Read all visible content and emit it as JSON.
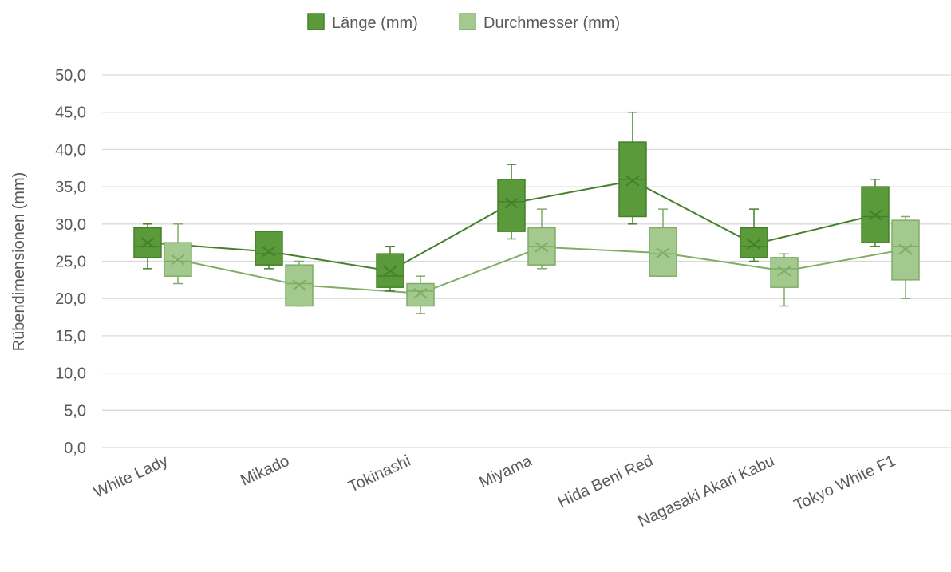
{
  "chart_data": {
    "type": "box",
    "title": "",
    "xlabel": "",
    "ylabel": "Rübendimensionen (mm)",
    "ylim": [
      0,
      50
    ],
    "ytick_step": 5,
    "ytick_labels": [
      "0,0",
      "5,0",
      "10,0",
      "15,0",
      "20,0",
      "25,0",
      "30,0",
      "35,0",
      "40,0",
      "45,0",
      "50,0"
    ],
    "grid": true,
    "legend_position": "top-center",
    "categories": [
      "White Lady",
      "Mikado",
      "Tokinashi",
      "Miyama",
      "Hida Beni Red",
      "Nagasaki Akari Kabu",
      "Tokyo White F1"
    ],
    "series": [
      {
        "name": "Länge (mm)",
        "color": "#5a9a3a",
        "stroke": "#44802a",
        "boxes": [
          {
            "min": 24,
            "q1": 25.5,
            "median": 27,
            "q3": 29.5,
            "max": 30,
            "mean": 27.5
          },
          {
            "min": 24,
            "q1": 24.5,
            "median": 26,
            "q3": 29,
            "max": 29,
            "mean": 26.3
          },
          {
            "min": 21,
            "q1": 21.5,
            "median": 23,
            "q3": 26,
            "max": 27,
            "mean": 23.7
          },
          {
            "min": 28,
            "q1": 29,
            "median": 33,
            "q3": 36,
            "max": 38,
            "mean": 32.8
          },
          {
            "min": 30,
            "q1": 31,
            "median": 36,
            "q3": 41,
            "max": 45,
            "mean": 35.8
          },
          {
            "min": 25,
            "q1": 25.5,
            "median": 27,
            "q3": 29.5,
            "max": 32,
            "mean": 27.3
          },
          {
            "min": 27,
            "q1": 27.5,
            "median": 31,
            "q3": 35,
            "max": 36,
            "mean": 31.2
          }
        ]
      },
      {
        "name": "Durchmesser (mm)",
        "color": "#a4c98e",
        "stroke": "#7fad66",
        "boxes": [
          {
            "min": 22,
            "q1": 23,
            "median": 25,
            "q3": 27.5,
            "max": 30,
            "mean": 25.2
          },
          {
            "min": 19,
            "q1": 19,
            "median": 22,
            "q3": 24.5,
            "max": 25,
            "mean": 21.8
          },
          {
            "min": 18,
            "q1": 19,
            "median": 21,
            "q3": 22,
            "max": 23,
            "mean": 20.7
          },
          {
            "min": 24,
            "q1": 24.5,
            "median": 27,
            "q3": 29.5,
            "max": 32,
            "mean": 26.9
          },
          {
            "min": 23,
            "q1": 23,
            "median": 26,
            "q3": 29.5,
            "max": 32,
            "mean": 26.1
          },
          {
            "min": 19,
            "q1": 21.5,
            "median": 24,
            "q3": 25.5,
            "max": 26,
            "mean": 23.7
          },
          {
            "min": 20,
            "q1": 22.5,
            "median": 27,
            "q3": 30.5,
            "max": 31,
            "mean": 26.6
          }
        ]
      }
    ]
  }
}
